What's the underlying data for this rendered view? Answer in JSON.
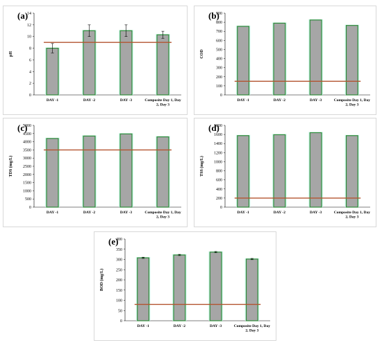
{
  "chart_data": [
    {
      "id": "a",
      "type": "bar",
      "panel_label": "(a)",
      "ylabel": "pH",
      "categories": [
        "DAY -1",
        "DAY -2",
        "DAY -3",
        "Composite Day 1, Day 2, Day 3"
      ],
      "values": [
        8.0,
        11.0,
        11.0,
        10.3
      ],
      "errors": [
        0.8,
        1.0,
        1.0,
        0.6
      ],
      "ylim": [
        0,
        14
      ],
      "yticks": [
        0,
        2,
        4,
        6,
        8,
        10,
        12,
        14
      ],
      "reference_line": 9.0,
      "bar_color": "#a6a6a6",
      "bar_edge_color": "#2e8b3a",
      "reference_color": "#b3532f"
    },
    {
      "id": "b",
      "type": "bar",
      "panel_label": "(b)",
      "ylabel": "COD",
      "categories": [
        "DAY -1",
        "DAY -2",
        "DAY -3",
        "Composite Day 1, Day 2, Day 3"
      ],
      "values": [
        755,
        790,
        825,
        765
      ],
      "errors": [
        0,
        0,
        0,
        0
      ],
      "ylim": [
        0,
        900
      ],
      "yticks": [
        0,
        100,
        200,
        300,
        400,
        500,
        600,
        700,
        800,
        900
      ],
      "reference_line": 150,
      "bar_color": "#a6a6a6",
      "bar_edge_color": "#2e8b3a",
      "reference_color": "#b3532f"
    },
    {
      "id": "c",
      "type": "bar",
      "panel_label": "(c)",
      "ylabel": "TDS (mg/L)",
      "categories": [
        "DAY -1",
        "DAY -2",
        "DAY -3",
        "Composite Day 1, Day 2, Day 3"
      ],
      "values": [
        4200,
        4350,
        4480,
        4300
      ],
      "errors": [
        0,
        0,
        0,
        0
      ],
      "ylim": [
        0,
        5000
      ],
      "yticks": [
        0,
        500,
        1000,
        1500,
        2000,
        2500,
        3000,
        3500,
        4000,
        4500,
        5000
      ],
      "reference_line": 3500,
      "bar_color": "#a6a6a6",
      "bar_edge_color": "#2e8b3a",
      "reference_color": "#b3532f"
    },
    {
      "id": "d",
      "type": "bar",
      "panel_label": "(d)",
      "ylabel": "TSS (mg/L)",
      "categories": [
        "DAY -1",
        "DAY -2",
        "DAY -3",
        "Composite Day 1, Day 2, Day 3"
      ],
      "values": [
        1575,
        1595,
        1640,
        1575
      ],
      "errors": [
        0,
        0,
        0,
        0
      ],
      "ylim": [
        0,
        1800
      ],
      "yticks": [
        0,
        200,
        400,
        600,
        800,
        1000,
        1200,
        1400,
        1600,
        1800
      ],
      "reference_line": 200,
      "bar_color": "#a6a6a6",
      "bar_edge_color": "#2e8b3a",
      "reference_color": "#b3532f"
    },
    {
      "id": "e",
      "type": "bar",
      "panel_label": "(e)",
      "ylabel": "BOD (mg/L)",
      "categories": [
        "DAY -1",
        "DAY -2",
        "DAY -3",
        "Composite Day 1, Day 2, Day 3"
      ],
      "values": [
        308,
        322,
        336,
        302
      ],
      "errors": [
        3,
        3,
        3,
        3
      ],
      "ylim": [
        0,
        400
      ],
      "yticks": [
        0,
        50,
        100,
        150,
        200,
        250,
        300,
        350,
        400
      ],
      "reference_line": 80,
      "bar_color": "#a6a6a6",
      "bar_edge_color": "#2e8b3a",
      "reference_color": "#b3532f"
    }
  ]
}
